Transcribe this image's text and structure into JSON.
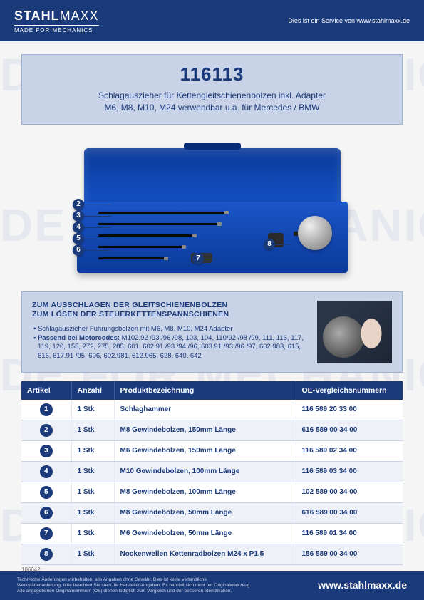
{
  "brand": {
    "name_a": "STAHL",
    "name_b": "MAXX",
    "tagline": "MADE FOR MECHANICS"
  },
  "header": {
    "service_note": "Dies ist ein Service von www.stahlmaxx.de"
  },
  "title": {
    "code": "116113",
    "desc_line1": "Schlagauszieher für Kettengleitschienenbolzen inkl. Adapter",
    "desc_line2": "M6, M8, M10, M24 verwendbar u.a. für Mercedes / BMW"
  },
  "image": {
    "badges": [
      "2",
      "3",
      "4",
      "5",
      "6",
      "7",
      "8"
    ]
  },
  "description": {
    "heading_line1": "ZUM AUSSCHLAGEN DER GLEITSCHIENENBOLZEN",
    "heading_line2": "ZUM LÖSEN DER STEUERKETTENSPANNSCHIENEN",
    "bullet1": "• Schlagauszieher Führungsbolzen mit M6, M8, M10, M24 Adapter",
    "bullet2_label": "• Passend bei Motorcodes:",
    "bullet2_text": " M102.92 /93 /96 /98, 103, 104, 110/92 /98 /99, 111, 116, 117, 119, 120, 155, 272, 275, 285, 601, 602.91 /93 /94 /96, 603.91 /93 /96 /97, 602.983, 615, 616, 617.91 /95, 606, 602.981, 612.965, 628, 640, 642"
  },
  "table": {
    "headers": {
      "artikel": "Artikel",
      "anzahl": "Anzahl",
      "bez": "Produktbezeichnung",
      "oe": "OE-Vergleichsnummern"
    },
    "rows": [
      {
        "n": "1",
        "qty": "1 Stk",
        "name": "Schlaghammer",
        "oe": "116 589 20 33 00"
      },
      {
        "n": "2",
        "qty": "1 Stk",
        "name": "M8 Gewindebolzen, 150mm Länge",
        "oe": "616 589 00 34 00"
      },
      {
        "n": "3",
        "qty": "1 Stk",
        "name": "M6 Gewindebolzen, 150mm Länge",
        "oe": "116 589 02 34 00"
      },
      {
        "n": "4",
        "qty": "1 Stk",
        "name": "M10 Gewindebolzen, 100mm Länge",
        "oe": "116 589 03 34 00"
      },
      {
        "n": "5",
        "qty": "1 Stk",
        "name": "M8 Gewindebolzen, 100mm Länge",
        "oe": "102 589 00 34 00"
      },
      {
        "n": "6",
        "qty": "1 Stk",
        "name": "M8 Gewindebolzen, 50mm Länge",
        "oe": "616 589 00 34 00"
      },
      {
        "n": "7",
        "qty": "1 Stk",
        "name": "M6 Gewindebolzen, 50mm Länge",
        "oe": "116 589 01 34 00"
      },
      {
        "n": "8",
        "qty": "1 Stk",
        "name": "Nockenwellen Kettenradbolzen M24 x P1.5",
        "oe": "156 589 00 34 00"
      }
    ]
  },
  "doc_number": "106642",
  "footer": {
    "disclaimer": "Technische Änderungen vorbehalten, alle Angaben ohne Gewähr. Dies ist keine verbindliche Werkstättenanleitung, bitte beachten Sie stets die Hersteller-Angaben. Es handelt sich nicht um Originalwerkzeug. Alle angegebenen Originalnummern (OE) dienen lediglich zum Vergleich und der besseren Identifikation.",
    "url": "www.stahlmaxx.de"
  },
  "watermark_text": "DE FOR MECHANICS"
}
